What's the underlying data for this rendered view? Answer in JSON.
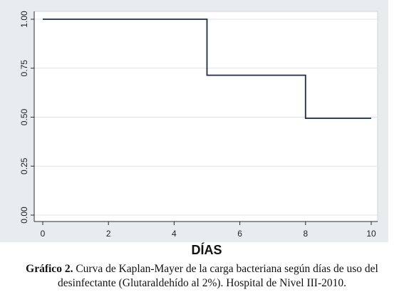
{
  "chart_data": {
    "type": "line",
    "step": true,
    "title": "",
    "xlabel": "DÍAS",
    "ylabel": "",
    "xlim": [
      0,
      10
    ],
    "ylim": [
      0,
      1
    ],
    "x_ticks": [
      0,
      2,
      4,
      6,
      8,
      10
    ],
    "y_ticks": [
      0,
      0.25,
      0.5,
      0.75,
      1
    ],
    "x_tick_labels": [
      "0",
      "2",
      "4",
      "6",
      "8",
      "10"
    ],
    "y_tick_labels": [
      "0.00",
      "0.25",
      "0.50",
      "0.75",
      "1.00"
    ],
    "grid": "horizontal",
    "legend": "none",
    "series": [
      {
        "x": [
          0,
          5,
          8,
          10
        ],
        "y": [
          1.0,
          0.714,
          0.494,
          0.494
        ],
        "color": "#1a2e44"
      }
    ],
    "colors": {
      "plot_bg": "#ffffff",
      "outer_bg": "#e8ecef",
      "grid": "#dfe3e6"
    }
  },
  "caption": {
    "lead": "Gráfico 2.",
    "text": " Curva de Kaplan-Mayer de la carga bacteriana según días de uso del desinfectante (Glutaraldehído al 2%). Hospital de Nivel III-2010."
  }
}
